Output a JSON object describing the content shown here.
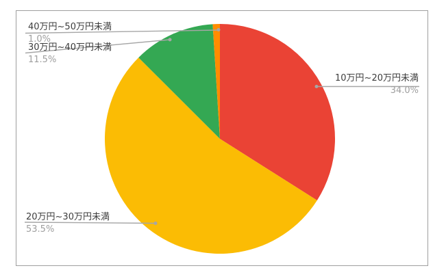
{
  "chart_data": {
    "type": "pie",
    "direction": "clockwise",
    "start_angle_deg": 0,
    "labels_style": "outside-callouts",
    "background_color": "#ffffff",
    "frame_border_color": "#9e9e9e",
    "callout_line_color": "#a6a6a6",
    "label_text_color": "#3c3c3c",
    "percent_text_color": "#9e9e9e",
    "slices": [
      {
        "label": "10万円~20万円未満",
        "value": 34.0,
        "percent_label": "34.0%",
        "color": "#ea4335"
      },
      {
        "label": "20万円~30万円未満",
        "value": 53.5,
        "percent_label": "53.5%",
        "color": "#fbbc04"
      },
      {
        "label": "30万円~40万円未満",
        "value": 11.5,
        "percent_label": "11.5%",
        "color": "#34a853"
      },
      {
        "label": "40万円~50万円未満",
        "value": 1.0,
        "percent_label": "1.0%",
        "color": "#ff8c00"
      }
    ]
  }
}
